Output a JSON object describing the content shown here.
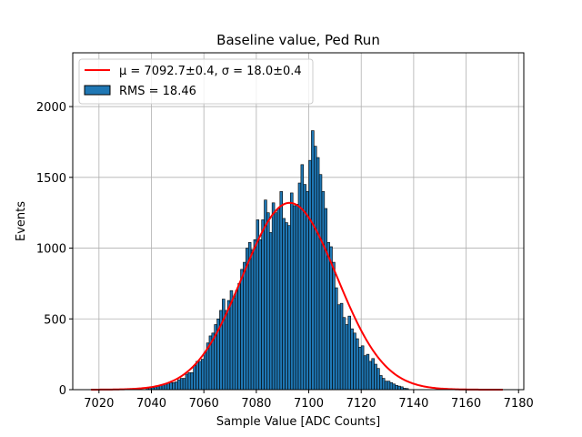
{
  "chart_data": {
    "type": "bar",
    "title": "Baseline value, Ped Run",
    "xlabel": "Sample Value [ADC Counts]",
    "ylabel": "Events",
    "xlim": [
      7010,
      7182
    ],
    "ylim": [
      0,
      2380
    ],
    "xticks": [
      7020,
      7040,
      7060,
      7080,
      7100,
      7120,
      7140,
      7160,
      7180
    ],
    "yticks": [
      0,
      500,
      1000,
      1500,
      2000
    ],
    "grid": true,
    "legend_position": "top-left",
    "colors": {
      "bar_fill": "#1f77b4",
      "bar_edge": "#000000",
      "fit_line": "#ff0000",
      "grid": "#b0b0b0"
    },
    "series": [
      {
        "name": "RMS = 18.46",
        "kind": "histogram",
        "bin_edges_start": 7018,
        "bin_width": 1,
        "values": [
          0,
          0,
          0,
          0,
          0,
          0,
          0,
          0,
          0,
          0,
          0,
          0,
          0,
          0,
          0,
          0,
          0,
          0,
          0,
          0,
          10,
          12,
          14,
          18,
          24,
          30,
          34,
          40,
          48,
          50,
          50,
          55,
          70,
          80,
          80,
          110,
          120,
          120,
          170,
          200,
          200,
          215,
          260,
          330,
          380,
          400,
          460,
          500,
          560,
          640,
          560,
          630,
          700,
          650,
          700,
          750,
          850,
          900,
          1000,
          1040,
          990,
          1060,
          1200,
          1060,
          1200,
          1340,
          1250,
          1110,
          1320,
          1250,
          1280,
          1400,
          1210,
          1180,
          1160,
          1390,
          1300,
          1310,
          1460,
          1590,
          1450,
          1400,
          1620,
          1830,
          1720,
          1640,
          1520,
          1400,
          1280,
          1040,
          1010,
          900,
          720,
          600,
          610,
          510,
          460,
          520,
          430,
          400,
          360,
          300,
          310,
          240,
          250,
          200,
          220,
          180,
          150,
          100,
          80,
          60,
          60,
          50,
          40,
          30,
          25,
          20,
          10,
          8
        ]
      },
      {
        "name": "μ = 7092.7±0.4, σ = 18.0±0.4",
        "kind": "gaussian_fit",
        "mu": 7092.7,
        "sigma": 18.0,
        "amplitude": 1320,
        "x_range": [
          7017,
          7174
        ]
      }
    ]
  }
}
